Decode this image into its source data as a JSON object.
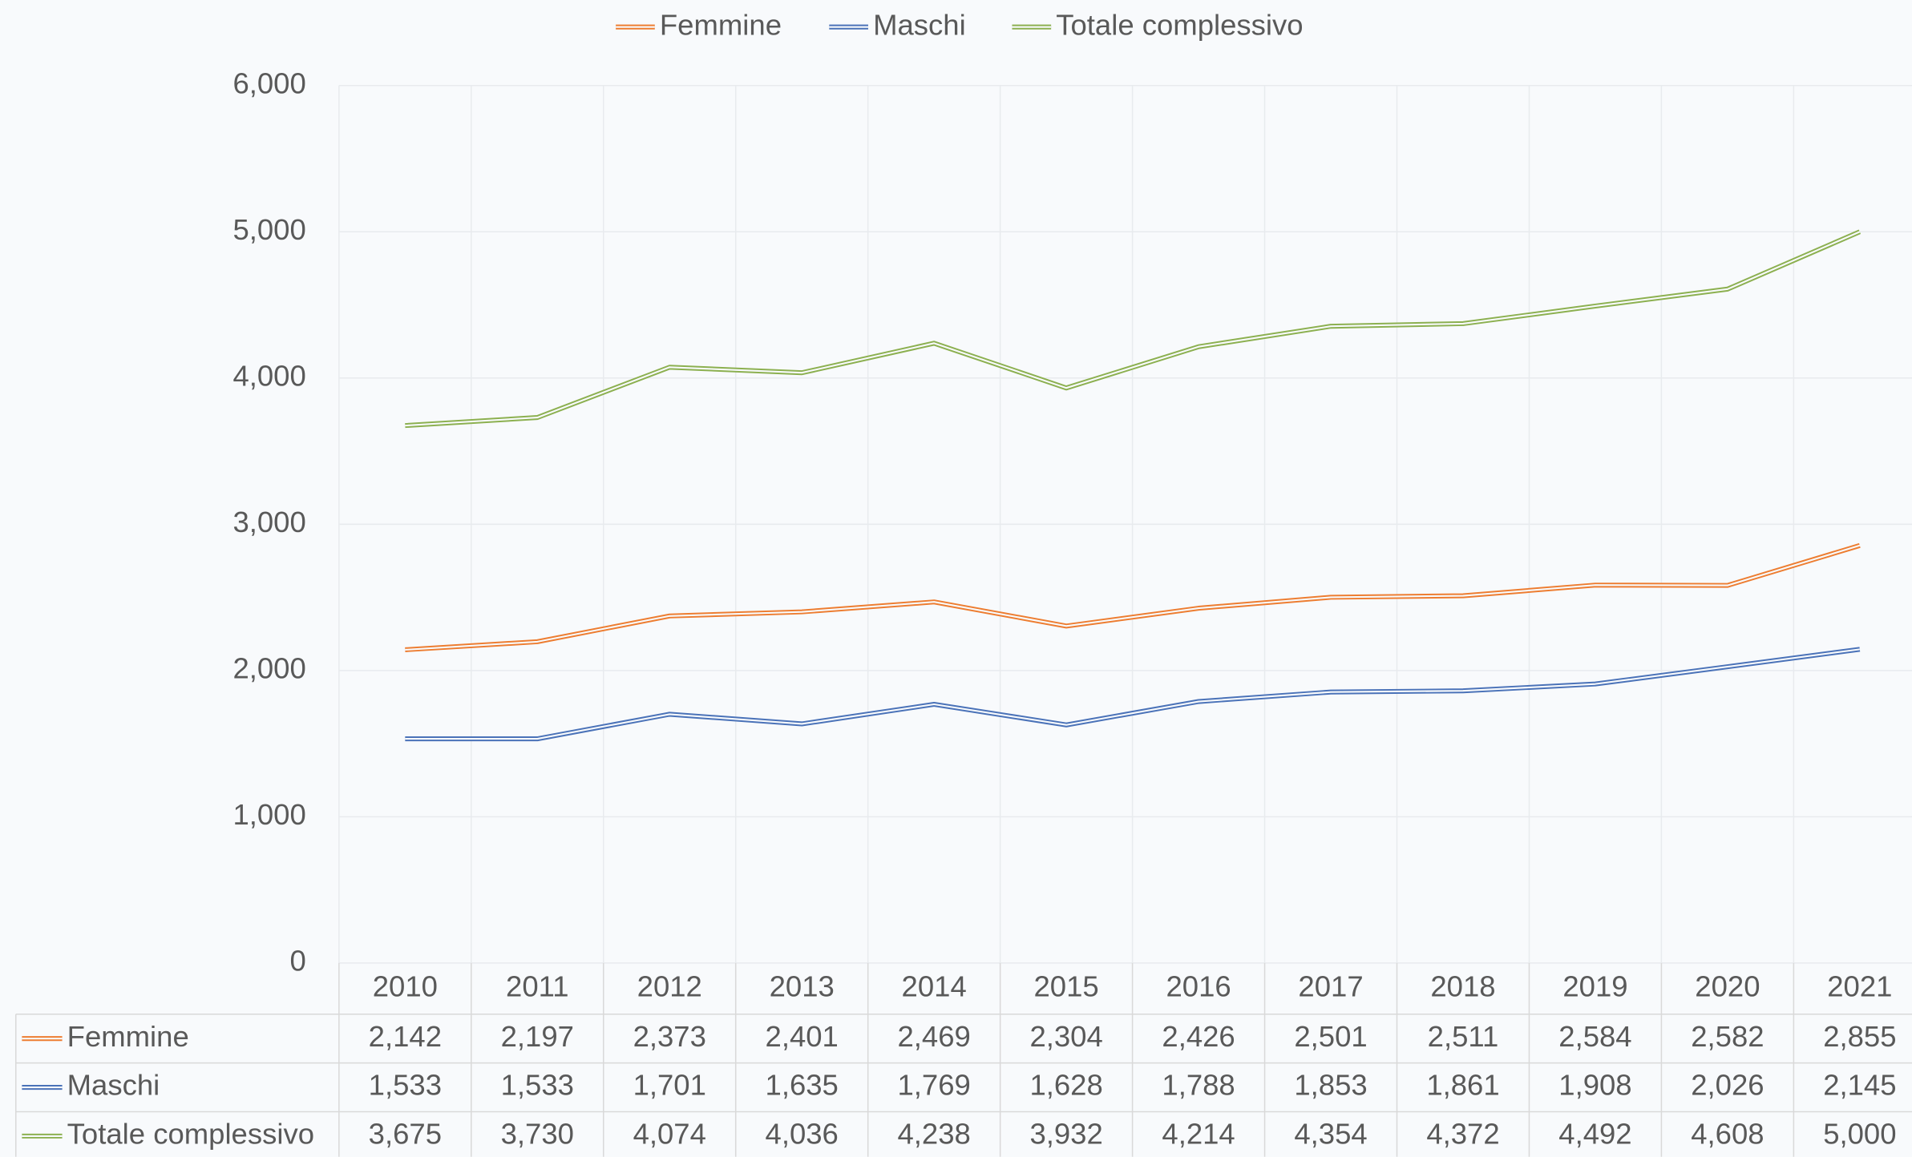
{
  "chart_data": {
    "type": "line",
    "categories": [
      "2010",
      "2011",
      "2012",
      "2013",
      "2014",
      "2015",
      "2016",
      "2017",
      "2018",
      "2019",
      "2020",
      "2021"
    ],
    "series": [
      {
        "name": "Femmine",
        "color": "#ed7d31",
        "values": [
          2142,
          2197,
          2373,
          2401,
          2469,
          2304,
          2426,
          2501,
          2511,
          2584,
          2582,
          2855
        ],
        "value_labels": [
          "2,142",
          "2,197",
          "2,373",
          "2,401",
          "2,469",
          "2,304",
          "2,426",
          "2,501",
          "2,511",
          "2,584",
          "2,582",
          "2,855"
        ]
      },
      {
        "name": "Maschi",
        "color": "#4a72b8",
        "values": [
          1533,
          1533,
          1701,
          1635,
          1769,
          1628,
          1788,
          1853,
          1861,
          1908,
          2026,
          2145
        ],
        "value_labels": [
          "1,533",
          "1,533",
          "1,701",
          "1,635",
          "1,769",
          "1,628",
          "1,788",
          "1,853",
          "1,861",
          "1,908",
          "2,026",
          "2,145"
        ]
      },
      {
        "name": "Totale complessivo",
        "color": "#8cb050",
        "values": [
          3675,
          3730,
          4074,
          4036,
          4238,
          3932,
          4214,
          4354,
          4372,
          4492,
          4608,
          5000
        ],
        "value_labels": [
          "3,675",
          "3,730",
          "4,074",
          "4,036",
          "4,238",
          "3,932",
          "4,214",
          "4,354",
          "4,372",
          "4,492",
          "4,608",
          "5,000"
        ]
      }
    ],
    "ylim": [
      0,
      6000
    ],
    "yticks": [
      0,
      {
        "value": 1000,
        "label": "1,000"
      },
      {
        "value": 2000,
        "label": "2,000"
      },
      {
        "value": 3000,
        "label": "3,000"
      },
      {
        "value": 4000,
        "label": "4,000"
      },
      {
        "value": 5000,
        "label": "5,000"
      },
      {
        "value": 6000,
        "label": "6,000"
      }
    ],
    "grid": true,
    "legend": "top"
  }
}
